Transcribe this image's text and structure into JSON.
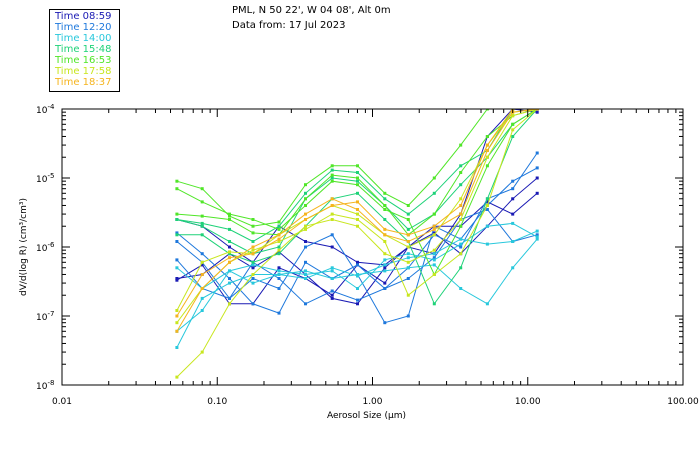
{
  "header": {
    "site": "PML, N 50 22', W 04 08', Alt 0m",
    "date": "Data from: 17 Jul 2023"
  },
  "legend": [
    {
      "label": "Time 08:59",
      "color": "#1a1ab4"
    },
    {
      "label": "Time 12:20",
      "color": "#1e78dc"
    },
    {
      "label": "Time 14:00",
      "color": "#28c8dc"
    },
    {
      "label": "Time 15:48",
      "color": "#1ed278"
    },
    {
      "label": "Time 16:53",
      "color": "#50e628"
    },
    {
      "label": "Time 17:58",
      "color": "#c8e61e"
    },
    {
      "label": "Time 18:37",
      "color": "#f5b41e"
    }
  ],
  "chart_data": {
    "type": "line",
    "xscale": "log",
    "yscale": "log",
    "xlabel": "Aerosol Size (µm)",
    "ylabel": "dV/d(log R) (cm³/cm³)",
    "xlim": [
      0.01,
      100
    ],
    "ylim": [
      1e-08,
      0.0001
    ],
    "xticks": [
      {
        "value": 0.01,
        "label": "0.01"
      },
      {
        "value": 0.1,
        "label": "0.10"
      },
      {
        "value": 1,
        "label": "1.00"
      },
      {
        "value": 10,
        "label": "10.00"
      },
      {
        "value": 100,
        "label": "100.00"
      }
    ],
    "yticks": [
      {
        "value": 0.0001,
        "mant": "10",
        "exp": "-4"
      },
      {
        "value": 1e-05,
        "mant": "10",
        "exp": "-5"
      },
      {
        "value": 1e-06,
        "mant": "10",
        "exp": "-6"
      },
      {
        "value": 1e-07,
        "mant": "10",
        "exp": "-7"
      },
      {
        "value": 1e-08,
        "mant": "10",
        "exp": "-8"
      }
    ],
    "x": [
      0.055,
      0.08,
      0.12,
      0.17,
      0.25,
      0.37,
      0.55,
      0.8,
      1.2,
      1.7,
      2.5,
      3.7,
      5.5,
      8,
      11.5
    ],
    "series": [
      {
        "name": "Time 08:59",
        "color": "#1a1ab4",
        "values": [
          3.5e-07,
          4e-07,
          8e-07,
          5e-07,
          8.5e-07,
          4e-07,
          1.8e-07,
          1.5e-07,
          5e-07,
          1e-06,
          1.6e-06,
          8e-07,
          2e-06,
          5e-06,
          1e-05
        ]
      },
      {
        "name": "Time 08:59",
        "color": "#1a1ab4",
        "values": [
          3.3e-07,
          5.5e-07,
          1.5e-07,
          1.5e-07,
          5e-07,
          3.5e-07,
          2e-07,
          5.5e-07,
          3e-07,
          1e-06,
          2e-06,
          2e-06,
          4.5e-06,
          3e-06,
          6e-06
        ]
      },
      {
        "name": "Time 08:59",
        "color": "#1a1ab4",
        "values": [
          2.5e-06,
          2e-06,
          1e-06,
          6e-07,
          2e-06,
          1.2e-06,
          1e-06,
          6e-07,
          5.5e-07,
          1e-06,
          8e-07,
          3e-06,
          4e-05,
          0.00012,
          9e-05
        ]
      },
      {
        "name": "Time 12:20",
        "color": "#1e78dc",
        "values": [
          1.6e-06,
          8e-07,
          3.5e-07,
          1.5e-07,
          1.1e-07,
          6e-07,
          3.5e-07,
          5.5e-07,
          2.5e-07,
          5e-07,
          1.5e-06,
          1e-06,
          5e-06,
          7e-06,
          2.3e-05
        ]
      },
      {
        "name": "Time 12:20",
        "color": "#1e78dc",
        "values": [
          6.5e-07,
          2.5e-07,
          1.8e-07,
          3.5e-07,
          2.5e-07,
          1e-06,
          1.5e-06,
          4e-07,
          8e-08,
          1e-07,
          2e-06,
          1.3e-06,
          4e-06,
          9e-06,
          1.4e-05
        ]
      },
      {
        "name": "Time 12:20",
        "color": "#1e78dc",
        "values": [
          1.2e-06,
          6e-07,
          1.8e-07,
          6e-07,
          3.5e-07,
          1.5e-07,
          2.3e-07,
          1.7e-07,
          2.5e-07,
          3.5e-07,
          7e-07,
          2.5e-06,
          3.5e-06,
          1.2e-06,
          1.5e-06
        ]
      },
      {
        "name": "Time 14:00",
        "color": "#28c8dc",
        "values": [
          5e-07,
          2.5e-07,
          4.5e-07,
          5.5e-07,
          4.5e-07,
          4e-07,
          4.5e-07,
          2.5e-07,
          6.5e-07,
          8e-07,
          6.5e-07,
          1.1e-06,
          2e-06,
          2.2e-06,
          1.4e-06
        ]
      },
      {
        "name": "Time 14:00",
        "color": "#28c8dc",
        "values": [
          3.5e-08,
          1.8e-07,
          3e-07,
          4e-07,
          4e-07,
          3.5e-07,
          5e-07,
          3.8e-07,
          5.5e-07,
          7e-07,
          8e-07,
          1.3e-06,
          1.1e-06,
          1.2e-06,
          1.7e-06
        ]
      },
      {
        "name": "Time 14:00",
        "color": "#28c8dc",
        "values": [
          6e-08,
          1.2e-07,
          4.5e-07,
          3e-07,
          4e-07,
          4.5e-07,
          3.5e-07,
          4e-07,
          4.5e-07,
          5e-07,
          5.5e-07,
          2.5e-07,
          1.5e-07,
          5e-07,
          1.3e-06
        ]
      },
      {
        "name": "Time 15:48",
        "color": "#1ed278",
        "values": [
          2.5e-06,
          2.2e-06,
          1.8e-06,
          1.2e-06,
          2e-06,
          6e-06,
          1.3e-05,
          1.2e-05,
          5e-06,
          3e-06,
          6e-06,
          1.5e-05,
          2.5e-05,
          0.0001,
          0.00011
        ]
      },
      {
        "name": "Time 15:48",
        "color": "#1ed278",
        "values": [
          2.5e-06,
          2e-06,
          1.2e-06,
          8e-07,
          1e-06,
          5e-06,
          1e-05,
          9e-06,
          4e-06,
          1.8e-06,
          3e-06,
          8e-06,
          2e-05,
          6e-05,
          0.00011
        ]
      },
      {
        "name": "Time 15:48",
        "color": "#1ed278",
        "values": [
          1.5e-06,
          1.5e-06,
          8e-07,
          6e-07,
          8e-07,
          2e-06,
          5e-06,
          6e-06,
          2.5e-06,
          1.2e-06,
          1.5e-07,
          5e-07,
          5e-06,
          4e-05,
          0.00011
        ]
      },
      {
        "name": "Time 16:53",
        "color": "#50e628",
        "values": [
          9e-06,
          7e-06,
          2.8e-06,
          2e-06,
          2.3e-06,
          8e-06,
          1.5e-05,
          1.5e-05,
          6e-06,
          4e-06,
          1e-05,
          3e-05,
          0.00011,
          0.00013,
          0.00012
        ]
      },
      {
        "name": "Time 16:53",
        "color": "#50e628",
        "values": [
          3e-06,
          2.8e-06,
          2.5e-06,
          1.6e-06,
          1.5e-06,
          5e-06,
          1.1e-05,
          1e-05,
          4e-06,
          1.5e-06,
          3e-06,
          1.2e-05,
          4e-05,
          8e-05,
          0.0001
        ]
      },
      {
        "name": "Time 16:53",
        "color": "#50e628",
        "values": [
          7e-06,
          4.5e-06,
          3e-06,
          2.5e-06,
          1.8e-06,
          4e-06,
          9e-06,
          8e-06,
          3.5e-06,
          2.5e-06,
          4e-07,
          2e-06,
          1.5e-05,
          6e-05,
          0.00012
        ]
      },
      {
        "name": "Time 17:58",
        "color": "#c8e61e",
        "values": [
          1.2e-07,
          6e-07,
          8.5e-07,
          8e-07,
          1.5e-06,
          2.5e-06,
          4e-06,
          3e-06,
          1.5e-06,
          1e-06,
          1.5e-06,
          5e-06,
          3e-05,
          9e-05,
          0.00011
        ]
      },
      {
        "name": "Time 17:58",
        "color": "#c8e61e",
        "values": [
          1.3e-08,
          3e-08,
          1.5e-07,
          4e-07,
          9e-07,
          2e-06,
          2.5e-06,
          2e-06,
          8e-07,
          6e-07,
          9e-07,
          2.5e-06,
          2e-05,
          8e-05,
          0.0001
        ]
      },
      {
        "name": "Time 17:58",
        "color": "#c8e61e",
        "values": [
          8e-08,
          2.5e-07,
          6e-07,
          9e-07,
          1.2e-06,
          1.8e-06,
          3e-06,
          2.5e-06,
          1.2e-06,
          2e-07,
          4e-07,
          8e-07,
          4e-06,
          5e-05,
          0.0001
        ]
      },
      {
        "name": "Time 18:37",
        "color": "#f5b41e",
        "values": [
          1e-07,
          4e-07,
          7e-07,
          8e-07,
          1.3e-06,
          2.5e-06,
          4e-06,
          4.5e-06,
          1.8e-06,
          1.5e-06,
          2e-06,
          4e-06,
          3e-05,
          0.0001,
          0.00012
        ]
      },
      {
        "name": "Time 18:37",
        "color": "#f5b41e",
        "values": [
          6e-08,
          2.5e-07,
          6e-07,
          1e-06,
          1.5e-06,
          3e-06,
          5e-06,
          3.5e-06,
          1.5e-06,
          1.2e-06,
          1.8e-06,
          3e-06,
          2.5e-05,
          9e-05,
          0.00011
        ]
      }
    ]
  }
}
